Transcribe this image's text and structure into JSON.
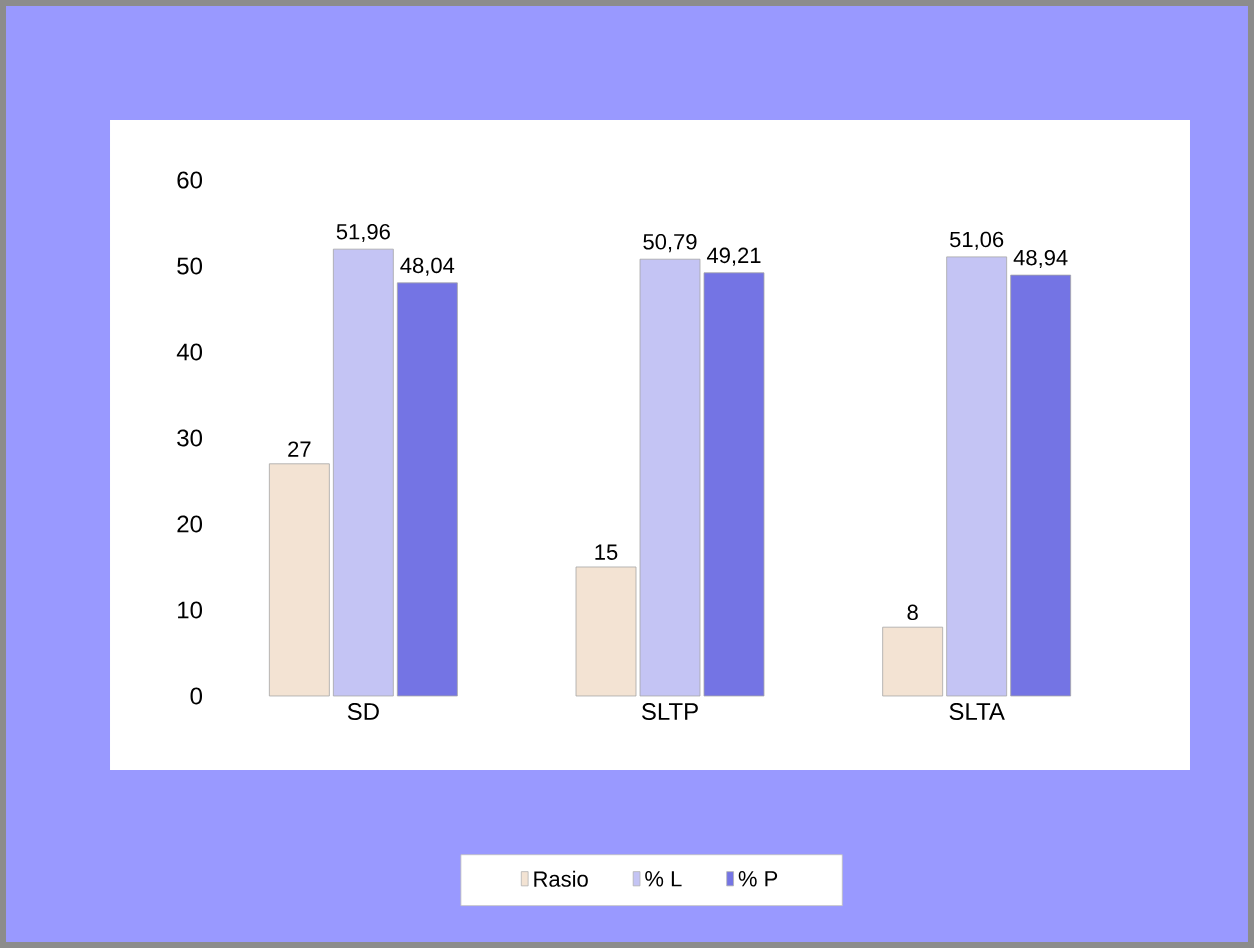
{
  "chart_data": {
    "type": "bar",
    "categories": [
      "SD",
      "SLTP",
      "SLTA"
    ],
    "series": [
      {
        "name": "Rasio",
        "color": "#f3e3d3",
        "values": [
          27,
          15,
          8
        ],
        "value_labels": [
          "27",
          "15",
          "8"
        ]
      },
      {
        "name": "% L",
        "color": "#c4c4f4",
        "values": [
          51.96,
          50.79,
          51.06
        ],
        "value_labels": [
          "51,96",
          "50,79",
          "51,06"
        ]
      },
      {
        "name": "% P",
        "color": "#7474e4",
        "values": [
          48.04,
          49.21,
          48.94
        ],
        "value_labels": [
          "48,04",
          "49,21",
          "48,94"
        ]
      }
    ],
    "ylim": [
      0,
      60
    ],
    "yticks": [
      0,
      10,
      20,
      30,
      40,
      50,
      60
    ],
    "grid": false,
    "legend": "bottom"
  }
}
